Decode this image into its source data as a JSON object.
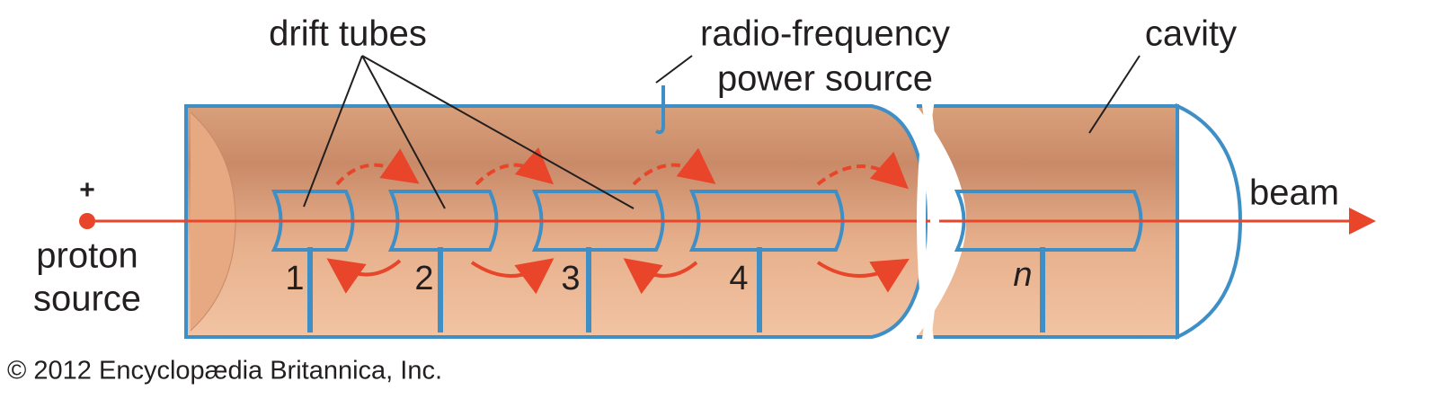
{
  "labels": {
    "drift_tubes": "drift tubes",
    "rf_source": [
      "radio-frequency",
      "power source"
    ],
    "cavity": "cavity",
    "beam": "beam",
    "proton_source": {
      "sign": "+",
      "lines": [
        "proton",
        "source"
      ]
    }
  },
  "tube_numbers": [
    "1",
    "2",
    "3",
    "4",
    "n"
  ],
  "copyright": "© 2012 Encyclopædia Britannica, Inc."
}
